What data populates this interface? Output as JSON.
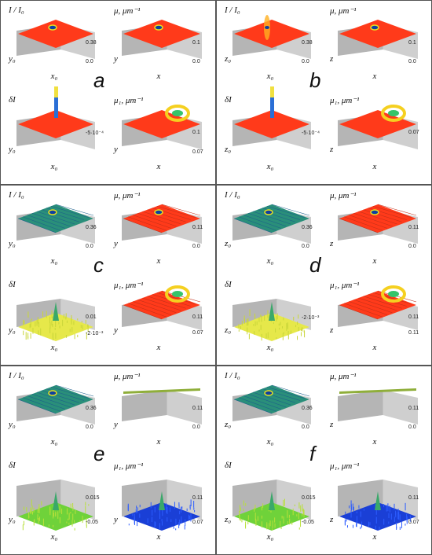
{
  "panels": [
    {
      "letter": "a",
      "plots": [
        {
          "title": "I / I₀",
          "left_axis": "y₀",
          "bottom_axis": "x₀",
          "ticks": [
            "0.38",
            "0.0"
          ],
          "surface": "red_flat_spot"
        },
        {
          "title": "μ, μm⁻¹",
          "left_axis": "y",
          "bottom_axis": "x",
          "ticks": [
            "0.1",
            "0.0"
          ],
          "surface": "red_flat_spot"
        },
        {
          "title": "δI",
          "left_axis": "y₀",
          "bottom_axis": "x₀",
          "ticks": [
            "-5·10⁻⁴"
          ],
          "surface": "red_flat_peak"
        },
        {
          "title": "μ₁, μm⁻¹",
          "left_axis": "y",
          "bottom_axis": "x",
          "ticks": [
            "0.1",
            "0.07"
          ],
          "surface": "red_flat_ring"
        }
      ]
    },
    {
      "letter": "b",
      "plots": [
        {
          "title": "I / I₀",
          "left_axis": "z₀",
          "bottom_axis": "x₀",
          "ticks": [
            "0.38",
            "0.0"
          ],
          "surface": "red_streak"
        },
        {
          "title": "μ, μm⁻¹",
          "left_axis": "z",
          "bottom_axis": "x",
          "ticks": [
            "0.1",
            "0.0"
          ],
          "surface": "red_flat_spot"
        },
        {
          "title": "δI",
          "left_axis": "z₀",
          "bottom_axis": "x₀",
          "ticks": [
            "-5·10⁻⁴"
          ],
          "surface": "red_flat_peak"
        },
        {
          "title": "μ₁, μm⁻¹",
          "left_axis": "z",
          "bottom_axis": "x",
          "ticks": [
            "0.07"
          ],
          "surface": "red_flat_ring"
        }
      ]
    },
    {
      "letter": "c",
      "plots": [
        {
          "title": "I / I₀",
          "left_axis": "y₀",
          "bottom_axis": "x₀",
          "ticks": [
            "0.36",
            "0.0"
          ],
          "surface": "green_grid"
        },
        {
          "title": "μ, μm⁻¹",
          "left_axis": "y",
          "bottom_axis": "x",
          "ticks": [
            "0.11",
            "0.0"
          ],
          "surface": "red_grid"
        },
        {
          "title": "δI",
          "left_axis": "y₀",
          "bottom_axis": "x₀",
          "ticks": [
            "0.01",
            "-2·10⁻³"
          ],
          "surface": "yellow_noise"
        },
        {
          "title": "μ₁, μm⁻¹",
          "left_axis": "y",
          "bottom_axis": "x",
          "ticks": [
            "0.11",
            "0.07"
          ],
          "surface": "red_grid_ring"
        }
      ]
    },
    {
      "letter": "d",
      "plots": [
        {
          "title": "I / I₀",
          "left_axis": "z₀",
          "bottom_axis": "x₀",
          "ticks": [
            "0.36",
            "0.0"
          ],
          "surface": "green_grid"
        },
        {
          "title": "μ, μm⁻¹",
          "left_axis": "z",
          "bottom_axis": "x",
          "ticks": [
            "0.11",
            "0.0"
          ],
          "surface": "red_grid"
        },
        {
          "title": "δI",
          "left_axis": "z₀",
          "bottom_axis": "x₀",
          "ticks": [
            "-2·10⁻³"
          ],
          "surface": "yellow_noise"
        },
        {
          "title": "μ₁, μm⁻¹",
          "left_axis": "z",
          "bottom_axis": "x",
          "ticks": [
            "0.11",
            "0.11"
          ],
          "surface": "red_grid_ring"
        }
      ]
    },
    {
      "letter": "e",
      "plots": [
        {
          "title": "I / I₀",
          "left_axis": "y₀",
          "bottom_axis": "x₀",
          "ticks": [
            "0.36",
            "0.0"
          ],
          "surface": "green_grid"
        },
        {
          "title": "μ, μm⁻¹",
          "left_axis": "y",
          "bottom_axis": "x",
          "ticks": [
            "0.11",
            "0.0"
          ],
          "surface": "thin_slab"
        },
        {
          "title": "δI",
          "left_axis": "y₀",
          "bottom_axis": "x₀",
          "ticks": [
            "0.015",
            "-0.05"
          ],
          "surface": "green_noise"
        },
        {
          "title": "μ₁, μm⁻¹",
          "left_axis": "y",
          "bottom_axis": "x",
          "ticks": [
            "0.11",
            "0.07"
          ],
          "surface": "blue_noise"
        }
      ]
    },
    {
      "letter": "f",
      "plots": [
        {
          "title": "I / I₀",
          "left_axis": "z₀",
          "bottom_axis": "x₀",
          "ticks": [
            "0.36",
            "0.0"
          ],
          "surface": "green_grid"
        },
        {
          "title": "μ, μm⁻¹",
          "left_axis": "z",
          "bottom_axis": "x",
          "ticks": [
            "0.11",
            "0.0"
          ],
          "surface": "thin_slab"
        },
        {
          "title": "δI",
          "left_axis": "z₀",
          "bottom_axis": "x₀",
          "ticks": [
            "0.015",
            "-0.05"
          ],
          "surface": "green_noise"
        },
        {
          "title": "μ₁, μm⁻¹",
          "left_axis": "z",
          "bottom_axis": "x",
          "ticks": [
            "0.11",
            "0.07"
          ],
          "surface": "blue_noise"
        }
      ]
    }
  ],
  "colors": {
    "red": "#ff3a1a",
    "red_dark": "#e02a10",
    "green_grid": "#2a8f7a",
    "yellow": "#e6e84a",
    "green": "#6fd23a",
    "blue": "#1a3fd6",
    "wall": "#cfcfcf",
    "wall_dark": "#b5b5b5",
    "border": "#555555"
  }
}
